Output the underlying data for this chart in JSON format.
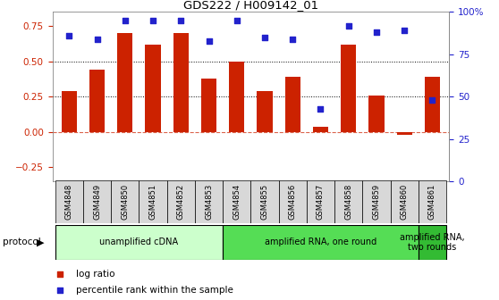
{
  "title": "GDS222 / H009142_01",
  "samples": [
    "GSM4848",
    "GSM4849",
    "GSM4850",
    "GSM4851",
    "GSM4852",
    "GSM4853",
    "GSM4854",
    "GSM4855",
    "GSM4856",
    "GSM4857",
    "GSM4858",
    "GSM4859",
    "GSM4860",
    "GSM4861"
  ],
  "log_ratio": [
    0.29,
    0.44,
    0.7,
    0.62,
    0.7,
    0.38,
    0.5,
    0.29,
    0.39,
    0.04,
    0.62,
    0.26,
    -0.02,
    0.39
  ],
  "percentile_rank": [
    86,
    84,
    95,
    95,
    95,
    83,
    95,
    85,
    84,
    43,
    92,
    88,
    89,
    48
  ],
  "bar_color": "#cc2200",
  "dot_color": "#2222cc",
  "ylim_left": [
    -0.35,
    0.85
  ],
  "ylim_right": [
    0,
    100
  ],
  "yticks_left": [
    -0.25,
    0,
    0.25,
    0.5,
    0.75
  ],
  "yticks_right": [
    0,
    25,
    50,
    75,
    100
  ],
  "hlines": [
    0.25,
    0.5
  ],
  "protocol_colors": [
    "#ccffcc",
    "#55dd55",
    "#33bb33"
  ],
  "protocol_labels": [
    "unamplified cDNA",
    "amplified RNA, one round",
    "amplified RNA,\ntwo rounds"
  ],
  "protocol_ranges": [
    [
      0,
      5
    ],
    [
      6,
      12
    ],
    [
      13,
      13
    ]
  ],
  "legend_items": [
    {
      "color": "#cc2200",
      "label": "log ratio"
    },
    {
      "color": "#2222cc",
      "label": "percentile rank within the sample"
    }
  ],
  "bg": "#ffffff",
  "red": "#cc2200",
  "blue": "#2222cc",
  "gray_tick_bg": "#d8d8d8"
}
